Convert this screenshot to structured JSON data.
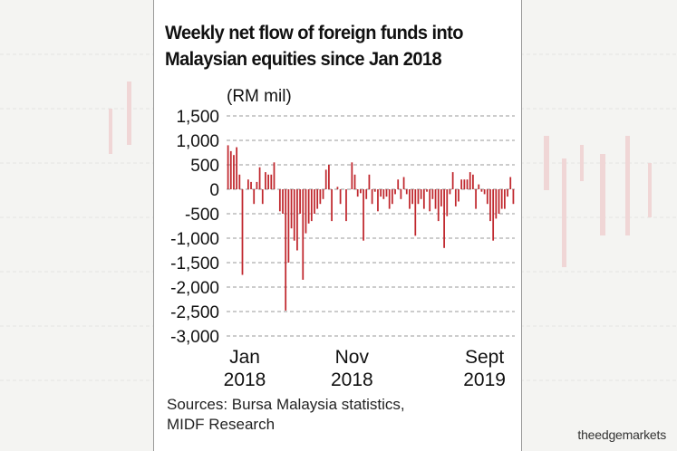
{
  "chart_data": {
    "type": "bar",
    "title": [
      "Weekly net flow of foreign funds into",
      "Malaysian equities since Jan 2018"
    ],
    "unit_label": "(RM mil)",
    "ylim": [
      -3000,
      1500
    ],
    "yticks": [
      "1,500",
      "1,000",
      "500",
      "0",
      "-500",
      "-1,000",
      "-1,500",
      "-2,000",
      "-2,500",
      "-3,000"
    ],
    "ytick_values": [
      1500,
      1000,
      500,
      0,
      -500,
      -1000,
      -1500,
      -2000,
      -2500,
      -3000
    ],
    "x_labels": [
      {
        "line1": "Jan",
        "line2": "2018",
        "index": 0
      },
      {
        "line1": "Nov",
        "line2": "2018",
        "index": 43
      },
      {
        "line1": "Sept",
        "line2": "2019",
        "index": 89
      }
    ],
    "grid": "horizontal dashed",
    "bar_color": "#c0272d",
    "values": [
      900,
      780,
      700,
      860,
      300,
      -1750,
      0,
      200,
      150,
      -300,
      150,
      450,
      -300,
      350,
      300,
      300,
      550,
      0,
      -450,
      -500,
      -2480,
      -1500,
      -800,
      -1050,
      -1250,
      -500,
      -1850,
      -900,
      -700,
      -650,
      -500,
      -400,
      -300,
      -200,
      400,
      500,
      -650,
      0,
      50,
      -300,
      0,
      -650,
      0,
      550,
      300,
      -150,
      -80,
      -1050,
      -200,
      300,
      -300,
      -50,
      -450,
      -150,
      -200,
      -150,
      -400,
      -300,
      -100,
      200,
      -200,
      250,
      -100,
      -400,
      -300,
      -950,
      -300,
      -200,
      -400,
      -50,
      -450,
      -200,
      -400,
      -650,
      -350,
      -1200,
      -550,
      -100,
      350,
      -350,
      -250,
      200,
      200,
      200,
      350,
      300,
      -400,
      100,
      -50,
      -100,
      -300,
      -650,
      -1050,
      -600,
      -500,
      -400,
      -400,
      -150,
      250,
      -300
    ]
  },
  "sources": [
    "Sources: Bursa Malaysia statistics,",
    "MIDF Research"
  ],
  "brand": "theedgemarkets"
}
